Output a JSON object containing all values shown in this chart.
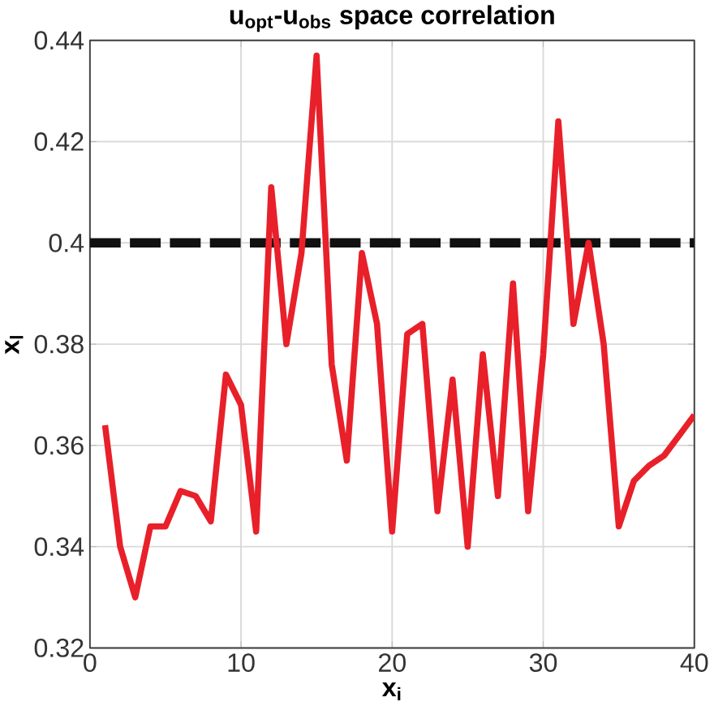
{
  "chart_data": {
    "type": "line",
    "title": "u$_{opt}$-u$_{obs}$ space correlation",
    "xlabel": "x$_{i}$",
    "ylabel": "x$_{l}$",
    "xlim": [
      0,
      40
    ],
    "ylim": [
      0.32,
      0.44
    ],
    "xticks": [
      0,
      10,
      20,
      30,
      40
    ],
    "yticks": [
      0.32,
      0.34,
      0.36,
      0.38,
      0.4,
      0.42,
      0.44
    ],
    "grid": true,
    "series": [
      {
        "color": "#e8202a",
        "x": [
          1,
          2,
          3,
          4,
          5,
          6,
          7,
          8,
          9,
          10,
          11,
          12,
          13,
          14,
          15,
          16,
          17,
          18,
          19,
          20,
          21,
          22,
          23,
          24,
          25,
          26,
          27,
          28,
          29,
          30,
          31,
          32,
          33,
          34,
          35,
          36,
          37,
          38,
          39,
          40
        ],
        "values": [
          0.364,
          0.34,
          0.33,
          0.344,
          0.344,
          0.351,
          0.35,
          0.345,
          0.374,
          0.368,
          0.343,
          0.411,
          0.38,
          0.398,
          0.437,
          0.376,
          0.357,
          0.398,
          0.384,
          0.343,
          0.382,
          0.384,
          0.347,
          0.373,
          0.34,
          0.378,
          0.35,
          0.392,
          0.347,
          0.378,
          0.424,
          0.384,
          0.4,
          0.38,
          0.344,
          0.353,
          0.356,
          0.358,
          0.362,
          0.366
        ]
      }
    ],
    "ref_lines": [
      {
        "axis": "y",
        "value": 0.4,
        "color": "#111111",
        "line_style": "dashed"
      }
    ]
  }
}
